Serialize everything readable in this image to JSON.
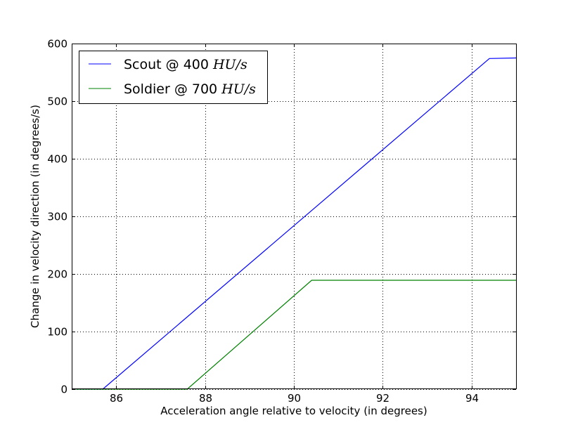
{
  "chart_data": {
    "type": "line",
    "title": "",
    "xlabel": "Acceleration angle relative to velocity (in degrees)",
    "ylabel": "Change in velocity direction (in degrees/s)",
    "xlim": [
      85,
      95
    ],
    "ylim": [
      0,
      600
    ],
    "xticks": [
      86,
      88,
      90,
      92,
      94
    ],
    "yticks": [
      0,
      100,
      200,
      300,
      400,
      500,
      600
    ],
    "grid": true,
    "legend_position": "top-left",
    "series": [
      {
        "name": "Scout @ 400",
        "name_math": "HU/s",
        "color": "#0000ff",
        "x": [
          85,
          85.7,
          94.4,
          95
        ],
        "y": [
          0,
          0,
          574,
          575
        ]
      },
      {
        "name": "Soldier @ 700",
        "name_math": "HU/s",
        "color": "#008000",
        "x": [
          85,
          87.6,
          90.4,
          95
        ],
        "y": [
          0,
          0,
          189,
          189
        ]
      }
    ]
  }
}
